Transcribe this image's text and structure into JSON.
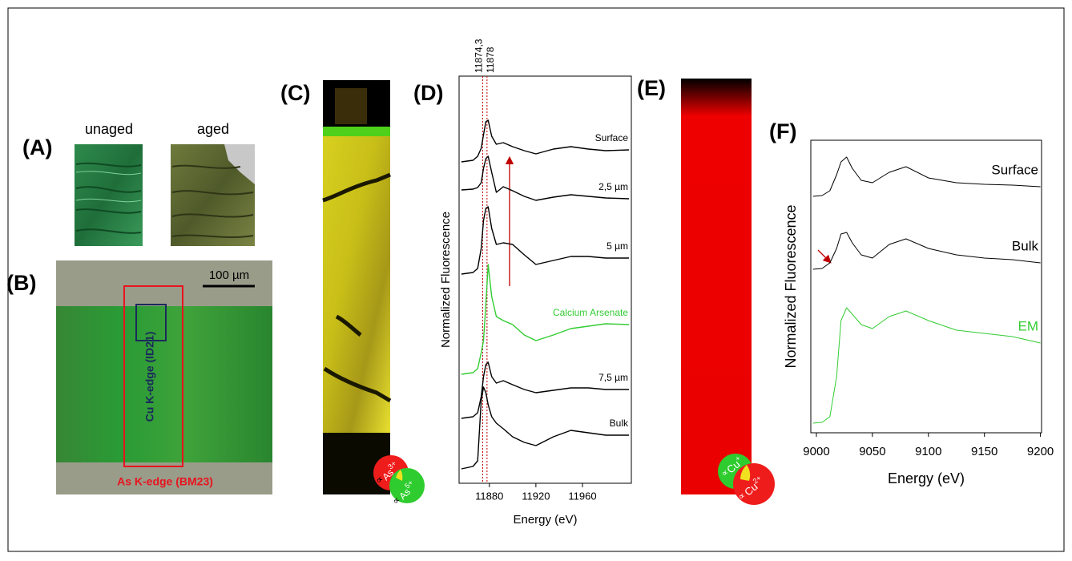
{
  "panel_labels": [
    "(A)",
    "(B)",
    "(C)",
    "(D)",
    "(E)",
    "(F)"
  ],
  "panel_a": {
    "captions": [
      "unaged",
      "aged"
    ]
  },
  "panel_b": {
    "scale_bar": "100 µm",
    "cu_region": "Cu K-edge (ID21)",
    "as_region": "As K-edge (BM23)"
  },
  "panel_c": {
    "legend": [
      {
        "symbol": "∝",
        "ion": "As",
        "charge": "3+"
      },
      {
        "symbol": "∝",
        "ion": "As",
        "charge": "5+"
      }
    ]
  },
  "panel_e": {
    "legend": [
      {
        "symbol": "∝",
        "ion": "Cu",
        "charge": "+"
      },
      {
        "symbol": "∝",
        "ion": "Cu",
        "charge": "2+"
      }
    ]
  },
  "chart_data": [
    {
      "type": "line",
      "xlabel": "Energy (eV)",
      "ylabel": "Normalized Fluorescence",
      "x": [
        11856,
        11866,
        11870,
        11873,
        11875,
        11877,
        11879,
        11882,
        11886,
        11892,
        11900,
        11910,
        11920,
        11935,
        11950,
        11965,
        11980,
        12000
      ],
      "xlim": [
        11854,
        12002
      ],
      "xticks": [
        11880,
        11920,
        11960
      ],
      "ylim": [
        -13,
        495
      ],
      "reference_lines": [
        {
          "value": 11874.3,
          "label": "11874,3"
        },
        {
          "value": 11878,
          "label": "11878"
        }
      ],
      "series": [
        {
          "name": "Surface",
          "color": "#000000",
          "values": [
            388,
            390,
            395,
            405,
            422,
            438,
            440,
            420,
            410,
            412,
            407,
            402,
            398,
            404,
            407,
            404,
            402,
            403
          ]
        },
        {
          "name": "2,5 µm",
          "color": "#000000",
          "values": [
            353,
            354,
            356,
            362,
            380,
            392,
            395,
            375,
            350,
            357,
            352,
            345,
            340,
            344,
            347,
            345,
            343,
            342
          ]
        },
        {
          "name": "5 µm",
          "color": "#000000",
          "values": [
            248,
            250,
            255,
            280,
            315,
            330,
            332,
            305,
            285,
            287,
            285,
            272,
            260,
            265,
            270,
            270,
            268,
            268
          ]
        },
        {
          "name": "Calcium Arsenate",
          "color": "#33cc33",
          "values": [
            123,
            125,
            130,
            150,
            165,
            210,
            260,
            220,
            195,
            190,
            185,
            172,
            165,
            172,
            180,
            183,
            186,
            185
          ]
        },
        {
          "name": "7,5 µm",
          "color": "#000000",
          "values": [
            68,
            70,
            75,
            95,
            120,
            135,
            138,
            120,
            112,
            115,
            110,
            104,
            100,
            103,
            106,
            106,
            104,
            104
          ]
        },
        {
          "name": "Bulk",
          "color": "#000000",
          "values": [
            5,
            8,
            15,
            90,
            107,
            100,
            85,
            70,
            62,
            55,
            45,
            38,
            34,
            45,
            53,
            50,
            47,
            47
          ]
        }
      ]
    },
    {
      "type": "line",
      "xlabel": "Energy (eV)",
      "ylabel": "Normalized Fluorescence",
      "x": [
        8997,
        9005,
        9012,
        9018,
        9022,
        9027,
        9032,
        9040,
        9050,
        9065,
        9080,
        9100,
        9125,
        9150,
        9175,
        9200
      ],
      "xlim": [
        8995,
        9201
      ],
      "xticks": [
        9000,
        9050,
        9100,
        9150,
        9200
      ],
      "ylim": [
        0,
        365
      ],
      "series": [
        {
          "name": "Surface",
          "color": "#000000",
          "values": [
            295,
            296,
            302,
            322,
            338,
            344,
            330,
            315,
            312,
            325,
            332,
            318,
            312,
            310,
            309,
            307
          ]
        },
        {
          "name": "Bulk",
          "color": "#000000",
          "values": [
            204,
            205,
            212,
            230,
            248,
            250,
            237,
            222,
            218,
            235,
            242,
            230,
            222,
            218,
            216,
            212
          ]
        },
        {
          "name": "EM",
          "color": "#33cc33",
          "values": [
            12,
            13,
            20,
            70,
            140,
            156,
            148,
            135,
            130,
            145,
            152,
            140,
            128,
            124,
            120,
            112
          ]
        }
      ]
    }
  ]
}
